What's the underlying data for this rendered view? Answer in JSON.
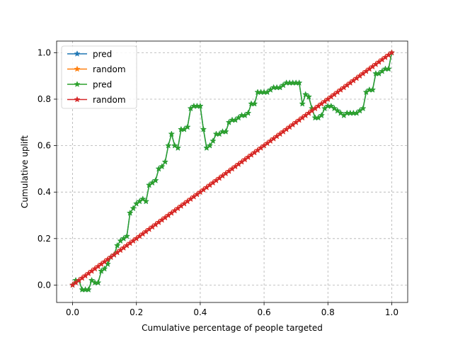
{
  "chart_data": {
    "type": "line",
    "title": "",
    "xlabel": "Cumulative percentage of people targeted",
    "ylabel": "Cumulative uplift",
    "xlim": [
      -0.05,
      1.05
    ],
    "ylim": [
      -0.075,
      1.05
    ],
    "xticks": [
      0.0,
      0.2,
      0.4,
      0.6,
      0.8,
      1.0
    ],
    "xtick_labels": [
      "0.0",
      "0.2",
      "0.4",
      "0.6",
      "0.8",
      "1.0"
    ],
    "yticks": [
      0.0,
      0.2,
      0.4,
      0.6,
      0.8,
      1.0
    ],
    "ytick_labels": [
      "0.0",
      "0.2",
      "0.4",
      "0.6",
      "0.8",
      "1.0"
    ],
    "grid": true,
    "grid_style": "dashed",
    "legend_placement": "upper-left",
    "series": [
      {
        "name": "pred",
        "color": "#1f77b4",
        "marker": "star",
        "x": [
          0.0,
          0.01,
          0.02,
          0.03,
          0.04,
          0.05,
          0.06,
          0.07,
          0.08,
          0.09,
          0.1,
          0.11,
          0.12,
          0.13,
          0.14,
          0.15,
          0.16,
          0.17,
          0.18,
          0.19,
          0.2,
          0.21,
          0.22,
          0.23,
          0.24,
          0.25,
          0.26,
          0.27,
          0.28,
          0.29,
          0.3,
          0.31,
          0.32,
          0.33,
          0.34,
          0.35,
          0.36,
          0.37,
          0.38,
          0.39,
          0.4,
          0.41,
          0.42,
          0.43,
          0.44,
          0.45,
          0.46,
          0.47,
          0.48,
          0.49,
          0.5,
          0.51,
          0.52,
          0.53,
          0.54,
          0.55,
          0.56,
          0.57,
          0.58,
          0.59,
          0.6,
          0.61,
          0.62,
          0.63,
          0.64,
          0.65,
          0.66,
          0.67,
          0.68,
          0.69,
          0.7,
          0.71,
          0.72,
          0.73,
          0.74,
          0.75,
          0.76,
          0.77,
          0.78,
          0.79,
          0.8,
          0.81,
          0.82,
          0.83,
          0.84,
          0.85,
          0.86,
          0.87,
          0.88,
          0.89,
          0.9,
          0.91,
          0.92,
          0.93,
          0.94,
          0.95,
          0.96,
          0.97,
          0.98,
          0.99,
          1.0
        ],
        "y": [
          0.0,
          0.02,
          0.02,
          -0.02,
          -0.02,
          -0.02,
          0.02,
          0.01,
          0.01,
          0.06,
          0.07,
          0.09,
          0.12,
          0.13,
          0.17,
          0.19,
          0.2,
          0.21,
          0.31,
          0.33,
          0.35,
          0.36,
          0.37,
          0.36,
          0.43,
          0.44,
          0.45,
          0.5,
          0.51,
          0.53,
          0.6,
          0.65,
          0.6,
          0.59,
          0.67,
          0.67,
          0.68,
          0.76,
          0.77,
          0.77,
          0.77,
          0.67,
          0.59,
          0.6,
          0.62,
          0.65,
          0.65,
          0.66,
          0.66,
          0.7,
          0.71,
          0.71,
          0.72,
          0.73,
          0.73,
          0.74,
          0.78,
          0.78,
          0.83,
          0.83,
          0.83,
          0.83,
          0.84,
          0.85,
          0.85,
          0.85,
          0.86,
          0.87,
          0.87,
          0.87,
          0.87,
          0.87,
          0.78,
          0.82,
          0.81,
          0.76,
          0.72,
          0.72,
          0.73,
          0.76,
          0.77,
          0.77,
          0.76,
          0.75,
          0.74,
          0.73,
          0.74,
          0.74,
          0.74,
          0.74,
          0.75,
          0.76,
          0.83,
          0.84,
          0.84,
          0.91,
          0.91,
          0.92,
          0.93,
          0.93,
          1.0
        ]
      },
      {
        "name": "random",
        "color": "#ff7f0e",
        "marker": "star",
        "x": [
          0.0,
          0.01,
          0.02,
          0.03,
          0.04,
          0.05,
          0.06,
          0.07,
          0.08,
          0.09,
          0.1,
          0.11,
          0.12,
          0.13,
          0.14,
          0.15,
          0.16,
          0.17,
          0.18,
          0.19,
          0.2,
          0.21,
          0.22,
          0.23,
          0.24,
          0.25,
          0.26,
          0.27,
          0.28,
          0.29,
          0.3,
          0.31,
          0.32,
          0.33,
          0.34,
          0.35,
          0.36,
          0.37,
          0.38,
          0.39,
          0.4,
          0.41,
          0.42,
          0.43,
          0.44,
          0.45,
          0.46,
          0.47,
          0.48,
          0.49,
          0.5,
          0.51,
          0.52,
          0.53,
          0.54,
          0.55,
          0.56,
          0.57,
          0.58,
          0.59,
          0.6,
          0.61,
          0.62,
          0.63,
          0.64,
          0.65,
          0.66,
          0.67,
          0.68,
          0.69,
          0.7,
          0.71,
          0.72,
          0.73,
          0.74,
          0.75,
          0.76,
          0.77,
          0.78,
          0.79,
          0.8,
          0.81,
          0.82,
          0.83,
          0.84,
          0.85,
          0.86,
          0.87,
          0.88,
          0.89,
          0.9,
          0.91,
          0.92,
          0.93,
          0.94,
          0.95,
          0.96,
          0.97,
          0.98,
          0.99,
          1.0
        ],
        "y": [
          0.0,
          0.01,
          0.02,
          0.03,
          0.04,
          0.05,
          0.06,
          0.07,
          0.08,
          0.09,
          0.1,
          0.11,
          0.12,
          0.13,
          0.14,
          0.15,
          0.16,
          0.17,
          0.18,
          0.19,
          0.2,
          0.21,
          0.22,
          0.23,
          0.24,
          0.25,
          0.26,
          0.27,
          0.28,
          0.29,
          0.3,
          0.31,
          0.32,
          0.33,
          0.34,
          0.35,
          0.36,
          0.37,
          0.38,
          0.39,
          0.4,
          0.41,
          0.42,
          0.43,
          0.44,
          0.45,
          0.46,
          0.47,
          0.48,
          0.49,
          0.5,
          0.51,
          0.52,
          0.53,
          0.54,
          0.55,
          0.56,
          0.57,
          0.58,
          0.59,
          0.6,
          0.61,
          0.62,
          0.63,
          0.64,
          0.65,
          0.66,
          0.67,
          0.68,
          0.69,
          0.7,
          0.71,
          0.72,
          0.73,
          0.74,
          0.75,
          0.76,
          0.77,
          0.78,
          0.79,
          0.8,
          0.81,
          0.82,
          0.83,
          0.84,
          0.85,
          0.86,
          0.87,
          0.88,
          0.89,
          0.9,
          0.91,
          0.92,
          0.93,
          0.94,
          0.95,
          0.96,
          0.97,
          0.98,
          0.99,
          1.0
        ]
      },
      {
        "name": "pred",
        "color": "#2ca02c",
        "marker": "star",
        "x": [
          0.0,
          0.01,
          0.02,
          0.03,
          0.04,
          0.05,
          0.06,
          0.07,
          0.08,
          0.09,
          0.1,
          0.11,
          0.12,
          0.13,
          0.14,
          0.15,
          0.16,
          0.17,
          0.18,
          0.19,
          0.2,
          0.21,
          0.22,
          0.23,
          0.24,
          0.25,
          0.26,
          0.27,
          0.28,
          0.29,
          0.3,
          0.31,
          0.32,
          0.33,
          0.34,
          0.35,
          0.36,
          0.37,
          0.38,
          0.39,
          0.4,
          0.41,
          0.42,
          0.43,
          0.44,
          0.45,
          0.46,
          0.47,
          0.48,
          0.49,
          0.5,
          0.51,
          0.52,
          0.53,
          0.54,
          0.55,
          0.56,
          0.57,
          0.58,
          0.59,
          0.6,
          0.61,
          0.62,
          0.63,
          0.64,
          0.65,
          0.66,
          0.67,
          0.68,
          0.69,
          0.7,
          0.71,
          0.72,
          0.73,
          0.74,
          0.75,
          0.76,
          0.77,
          0.78,
          0.79,
          0.8,
          0.81,
          0.82,
          0.83,
          0.84,
          0.85,
          0.86,
          0.87,
          0.88,
          0.89,
          0.9,
          0.91,
          0.92,
          0.93,
          0.94,
          0.95,
          0.96,
          0.97,
          0.98,
          0.99,
          1.0
        ],
        "y": [
          0.0,
          0.02,
          0.02,
          -0.02,
          -0.02,
          -0.02,
          0.02,
          0.01,
          0.01,
          0.06,
          0.07,
          0.09,
          0.12,
          0.13,
          0.17,
          0.19,
          0.2,
          0.21,
          0.31,
          0.33,
          0.35,
          0.36,
          0.37,
          0.36,
          0.43,
          0.44,
          0.45,
          0.5,
          0.51,
          0.53,
          0.6,
          0.65,
          0.6,
          0.59,
          0.67,
          0.67,
          0.68,
          0.76,
          0.77,
          0.77,
          0.77,
          0.67,
          0.59,
          0.6,
          0.62,
          0.65,
          0.65,
          0.66,
          0.66,
          0.7,
          0.71,
          0.71,
          0.72,
          0.73,
          0.73,
          0.74,
          0.78,
          0.78,
          0.83,
          0.83,
          0.83,
          0.83,
          0.84,
          0.85,
          0.85,
          0.85,
          0.86,
          0.87,
          0.87,
          0.87,
          0.87,
          0.87,
          0.78,
          0.82,
          0.81,
          0.76,
          0.72,
          0.72,
          0.73,
          0.76,
          0.77,
          0.77,
          0.76,
          0.75,
          0.74,
          0.73,
          0.74,
          0.74,
          0.74,
          0.74,
          0.75,
          0.76,
          0.83,
          0.84,
          0.84,
          0.91,
          0.91,
          0.92,
          0.93,
          0.93,
          1.0
        ]
      },
      {
        "name": "random",
        "color": "#d62728",
        "marker": "star",
        "x": [
          0.0,
          0.01,
          0.02,
          0.03,
          0.04,
          0.05,
          0.06,
          0.07,
          0.08,
          0.09,
          0.1,
          0.11,
          0.12,
          0.13,
          0.14,
          0.15,
          0.16,
          0.17,
          0.18,
          0.19,
          0.2,
          0.21,
          0.22,
          0.23,
          0.24,
          0.25,
          0.26,
          0.27,
          0.28,
          0.29,
          0.3,
          0.31,
          0.32,
          0.33,
          0.34,
          0.35,
          0.36,
          0.37,
          0.38,
          0.39,
          0.4,
          0.41,
          0.42,
          0.43,
          0.44,
          0.45,
          0.46,
          0.47,
          0.48,
          0.49,
          0.5,
          0.51,
          0.52,
          0.53,
          0.54,
          0.55,
          0.56,
          0.57,
          0.58,
          0.59,
          0.6,
          0.61,
          0.62,
          0.63,
          0.64,
          0.65,
          0.66,
          0.67,
          0.68,
          0.69,
          0.7,
          0.71,
          0.72,
          0.73,
          0.74,
          0.75,
          0.76,
          0.77,
          0.78,
          0.79,
          0.8,
          0.81,
          0.82,
          0.83,
          0.84,
          0.85,
          0.86,
          0.87,
          0.88,
          0.89,
          0.9,
          0.91,
          0.92,
          0.93,
          0.94,
          0.95,
          0.96,
          0.97,
          0.98,
          0.99,
          1.0
        ],
        "y": [
          0.0,
          0.01,
          0.02,
          0.03,
          0.04,
          0.05,
          0.06,
          0.07,
          0.08,
          0.09,
          0.1,
          0.11,
          0.12,
          0.13,
          0.14,
          0.15,
          0.16,
          0.17,
          0.18,
          0.19,
          0.2,
          0.21,
          0.22,
          0.23,
          0.24,
          0.25,
          0.26,
          0.27,
          0.28,
          0.29,
          0.3,
          0.31,
          0.32,
          0.33,
          0.34,
          0.35,
          0.36,
          0.37,
          0.38,
          0.39,
          0.4,
          0.41,
          0.42,
          0.43,
          0.44,
          0.45,
          0.46,
          0.47,
          0.48,
          0.49,
          0.5,
          0.51,
          0.52,
          0.53,
          0.54,
          0.55,
          0.56,
          0.57,
          0.58,
          0.59,
          0.6,
          0.61,
          0.62,
          0.63,
          0.64,
          0.65,
          0.66,
          0.67,
          0.68,
          0.69,
          0.7,
          0.71,
          0.72,
          0.73,
          0.74,
          0.75,
          0.76,
          0.77,
          0.78,
          0.79,
          0.8,
          0.81,
          0.82,
          0.83,
          0.84,
          0.85,
          0.86,
          0.87,
          0.88,
          0.89,
          0.9,
          0.91,
          0.92,
          0.93,
          0.94,
          0.95,
          0.96,
          0.97,
          0.98,
          0.99,
          1.0
        ]
      }
    ]
  }
}
